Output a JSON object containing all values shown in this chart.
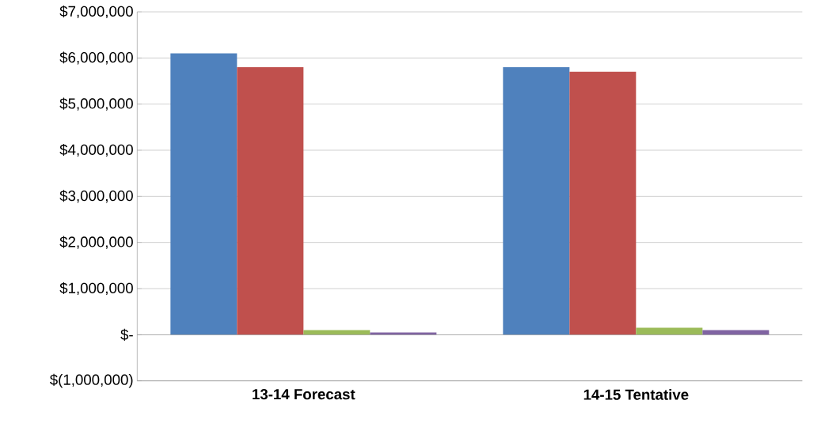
{
  "chart_data": {
    "type": "bar",
    "categories": [
      "13-14 Forecast",
      "14-15 Tentative"
    ],
    "series": [
      {
        "color": "#4f81bd",
        "values": [
          6100000,
          5800000
        ]
      },
      {
        "color": "#c0504d",
        "values": [
          5800000,
          5700000
        ]
      },
      {
        "color": "#9bbb59",
        "values": [
          100000,
          150000
        ]
      },
      {
        "color": "#8064a2",
        "values": [
          50000,
          100000
        ]
      }
    ],
    "ylim": [
      -1000000,
      7000000
    ],
    "yticks": [
      {
        "value": -1000000,
        "label": "$(1,000,000)"
      },
      {
        "value": 0,
        "label": "$-"
      },
      {
        "value": 1000000,
        "label": "$1,000,000"
      },
      {
        "value": 2000000,
        "label": "$2,000,000"
      },
      {
        "value": 3000000,
        "label": "$3,000,000"
      },
      {
        "value": 4000000,
        "label": "$4,000,000"
      },
      {
        "value": 5000000,
        "label": "$5,000,000"
      },
      {
        "value": 6000000,
        "label": "$6,000,000"
      },
      {
        "value": 7000000,
        "label": "$7,000,000"
      }
    ],
    "grid": "y"
  }
}
